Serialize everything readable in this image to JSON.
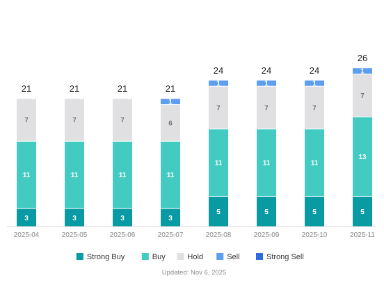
{
  "chart_data": {
    "type": "bar",
    "stacked": true,
    "categories": [
      "2025-04",
      "2025-05",
      "2025-06",
      "2025-07",
      "2025-08",
      "2025-09",
      "2025-10",
      "2025-11"
    ],
    "series": [
      {
        "name": "Strong Buy",
        "color": "#089ba3",
        "label_color": "#ffffff",
        "values": [
          3,
          3,
          3,
          3,
          5,
          5,
          5,
          5
        ]
      },
      {
        "name": "Buy",
        "color": "#43cbc2",
        "label_color": "#ffffff",
        "values": [
          11,
          11,
          11,
          11,
          11,
          11,
          11,
          13
        ]
      },
      {
        "name": "Hold",
        "color": "#e0e0e2",
        "label_color": "#777777",
        "values": [
          7,
          7,
          7,
          6,
          7,
          7,
          7,
          7
        ]
      },
      {
        "name": "Sell",
        "color": "#5e9ef0",
        "label_color": "#ffffff",
        "values": [
          0,
          0,
          0,
          1,
          1,
          1,
          1,
          1
        ]
      },
      {
        "name": "Strong Sell",
        "color": "#2c6ce0",
        "label_color": "#ffffff",
        "values": [
          0,
          0,
          0,
          0,
          0,
          0,
          0,
          0
        ]
      }
    ],
    "totals": [
      21,
      21,
      21,
      21,
      24,
      24,
      24,
      26
    ],
    "ylim": [
      0,
      26
    ],
    "grid": false,
    "legend_position": "bottom",
    "xlabel": "",
    "ylabel": "",
    "title": ""
  },
  "footer": {
    "updated_text": "Updated: Nov 6, 2025"
  }
}
